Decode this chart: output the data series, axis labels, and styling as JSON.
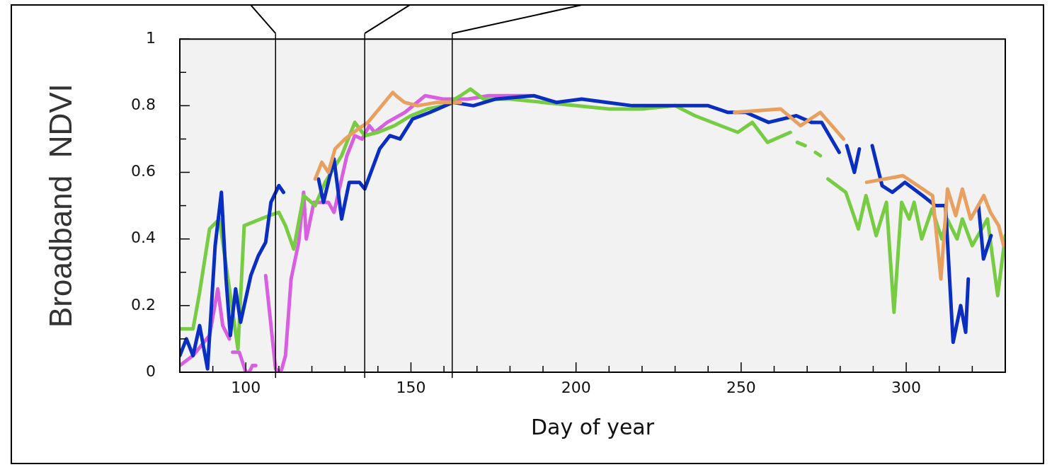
{
  "chart_data": {
    "type": "line",
    "xlabel": "Day of year",
    "ylabel": "Broadband  NDVI",
    "xlim": [
      80,
      330
    ],
    "ylim": [
      0,
      1
    ],
    "xticks": [
      {
        "value": 90,
        "label": null
      },
      100,
      {
        "value": 110,
        "label": null
      },
      {
        "value": 120,
        "label": null
      },
      {
        "value": 130,
        "label": null
      },
      {
        "value": 140,
        "label": null
      },
      150,
      {
        "value": 160,
        "label": null
      },
      {
        "value": 170,
        "label": null
      },
      {
        "value": 180,
        "label": null
      },
      {
        "value": 190,
        "label": null
      },
      200,
      {
        "value": 210,
        "label": null
      },
      {
        "value": 220,
        "label": null
      },
      {
        "value": 230,
        "label": null
      },
      {
        "value": 240,
        "label": null
      },
      250,
      {
        "value": 260,
        "label": null
      },
      {
        "value": 270,
        "label": null
      },
      {
        "value": 280,
        "label": null
      },
      {
        "value": 290,
        "label": null
      },
      300,
      {
        "value": 310,
        "label": null
      },
      {
        "value": 320,
        "label": null
      }
    ],
    "yticks": [
      0,
      {
        "value": 0.1,
        "label": null
      },
      0.2,
      {
        "value": 0.3,
        "label": null
      },
      0.4,
      {
        "value": 0.5,
        "label": null
      },
      0.6,
      {
        "value": 0.7,
        "label": null
      },
      0.8,
      {
        "value": 0.9,
        "label": null
      },
      1
    ],
    "legend": false,
    "marker": "none",
    "line_style": "solid",
    "ref_lines": [
      {
        "axis": "x",
        "value": 109,
        "color": "#000000"
      },
      {
        "axis": "x",
        "value": 136,
        "color": "#000000"
      },
      {
        "axis": "x",
        "value": 162.5,
        "color": "#000000"
      }
    ],
    "series": [
      {
        "color": "#e8a060",
        "x": [
          121,
          123,
          125,
          127,
          130,
          134,
          137,
          144.5,
          145.5,
          148,
          152,
          158,
          165,
          166,
          248,
          262,
          268,
          274,
          277.5,
          281,
          282,
          288,
          299,
          308,
          310.5,
          312.5,
          315,
          317,
          319.5,
          323.5,
          325.5,
          328,
          329.5
        ],
        "values": [
          0.58,
          0.63,
          0.6,
          0.67,
          0.7,
          0.73,
          0.75,
          0.84,
          0.83,
          0.81,
          0.8,
          0.81,
          0.81,
          null,
          0.78,
          0.79,
          0.74,
          0.78,
          0.74,
          0.7,
          null,
          0.57,
          0.59,
          0.53,
          0.28,
          0.55,
          0.47,
          0.55,
          0.46,
          0.53,
          0.48,
          0.44,
          0.38
        ]
      },
      {
        "color": "#0a2fc0",
        "x": [
          80,
          82,
          84,
          86,
          88.4,
          90.7,
          92.6,
          94,
          95.3,
          96.9,
          98.4,
          101.5,
          103.8,
          106,
          107.6,
          110,
          111.4,
          115,
          122,
          123.5,
          126.7,
          129,
          131.3,
          134.4,
          136,
          140.5,
          143.6,
          146.7,
          150.5,
          155.8,
          162.7,
          168.9,
          175.7,
          187.2,
          194,
          201.7,
          209.4,
          217,
          224.7,
          232.3,
          240,
          246,
          251.4,
          258.3,
          266.7,
          271.3,
          274.4,
          279.7,
          281,
          282,
          284.3,
          285.8,
          287,
          289.7,
          292.7,
          295.8,
          299.6,
          305,
          308.8,
          311.9,
          314.2,
          316.5,
          318,
          318.8,
          320,
          321.9,
          323.4,
          325.7
        ],
        "values": [
          0.05,
          0.1,
          0.05,
          0.14,
          0.01,
          0.38,
          0.54,
          0.28,
          0.11,
          0.25,
          0.15,
          0.29,
          0.35,
          0.39,
          0.51,
          0.56,
          0.54,
          null,
          0.58,
          0.51,
          0.64,
          0.46,
          0.57,
          0.57,
          0.55,
          0.67,
          0.71,
          0.7,
          0.76,
          0.78,
          0.81,
          0.8,
          0.82,
          0.83,
          0.81,
          0.82,
          0.81,
          0.8,
          0.8,
          0.8,
          0.8,
          0.78,
          0.78,
          0.75,
          0.77,
          0.75,
          0.75,
          0.66,
          null,
          0.68,
          0.6,
          0.67,
          null,
          0.68,
          0.56,
          0.54,
          0.57,
          0.53,
          0.5,
          0.5,
          0.09,
          0.2,
          0.12,
          0.28,
          null,
          0.5,
          0.34,
          0.41
        ]
      },
      {
        "color": "#77cc44",
        "x": [
          80,
          84,
          86,
          89,
          92,
          97.6,
          99.5,
          107,
          110,
          112,
          114.5,
          117.5,
          121,
          124,
          129,
          133,
          136,
          140,
          145,
          150,
          155,
          160,
          165,
          168,
          172,
          180,
          190,
          200,
          210,
          220,
          230,
          236,
          249,
          253.4,
          258,
          264.9,
          266,
          267,
          269.4,
          271,
          272.5,
          274,
          275,
          276.3,
          281.7,
          285.5,
          287.8,
          290.9,
          294,
          296.3,
          298.6,
          300.9,
          302.4,
          304.7,
          307.8,
          310.8,
          312.4,
          315.4,
          317,
          320,
          324.6,
          327.7,
          330
        ],
        "values": [
          0.13,
          0.13,
          0.24,
          0.43,
          0.46,
          0.07,
          0.44,
          0.47,
          0.48,
          0.44,
          0.37,
          0.53,
          0.5,
          0.57,
          0.65,
          0.75,
          0.71,
          0.72,
          0.74,
          0.77,
          0.79,
          0.8,
          0.83,
          0.85,
          0.82,
          0.82,
          0.81,
          0.8,
          0.79,
          0.79,
          0.8,
          0.77,
          0.72,
          0.75,
          0.69,
          0.72,
          null,
          0.69,
          0.68,
          null,
          0.66,
          0.65,
          null,
          0.58,
          0.54,
          0.43,
          0.53,
          0.41,
          0.51,
          0.18,
          0.51,
          0.46,
          0.51,
          0.4,
          0.49,
          0.4,
          0.46,
          0.4,
          0.46,
          0.38,
          0.46,
          0.23,
          0.41
        ]
      },
      {
        "color": "#d860e0",
        "x": [
          80,
          84,
          89,
          91.5,
          93,
          95,
          95.5,
          96,
          98,
          100,
          101,
          102,
          103,
          104,
          106,
          109,
          110.6,
          112,
          113.7,
          116,
          117.5,
          118.3,
          120.6,
          125,
          126.7,
          130.6,
          133,
          135.2,
          137.4,
          139,
          142.8,
          148.2,
          154.3,
          159.7,
          167.3,
          173.5,
          180.4,
          186.5
        ],
        "values": [
          0.02,
          0.05,
          0.11,
          0.25,
          0.14,
          0.1,
          null,
          0.06,
          0.06,
          0.0,
          0.0,
          0.02,
          0.02,
          null,
          0.29,
          0.01,
          0.0,
          0.05,
          0.28,
          0.39,
          0.54,
          0.4,
          0.51,
          0.51,
          0.48,
          0.65,
          0.71,
          0.7,
          0.74,
          0.72,
          0.75,
          0.78,
          0.83,
          0.82,
          0.82,
          0.83,
          0.83,
          0.83
        ]
      }
    ]
  }
}
